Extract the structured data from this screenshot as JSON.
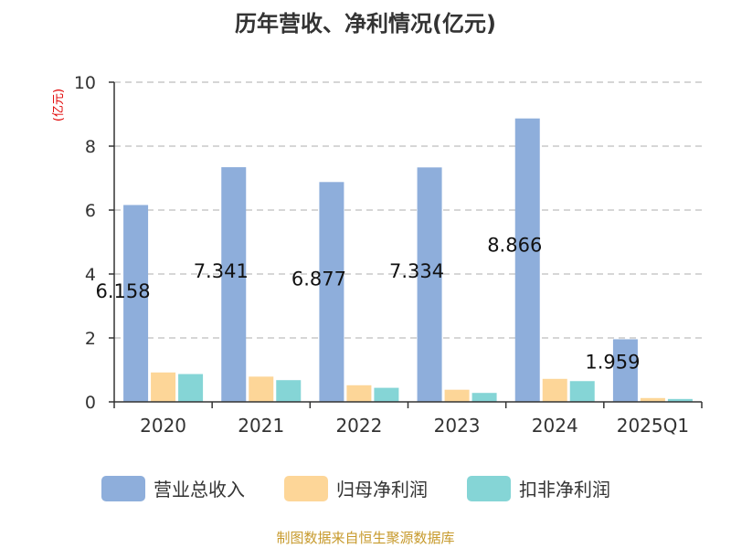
{
  "title": "历年营收、净利情况(亿元)",
  "unit_label": "(亿元)",
  "source": "制图数据来自恒生聚源数据库",
  "colors": {
    "营业总收入": "#8eaedb",
    "归母净利润": "#fdd698",
    "扣非净利润": "#85d5d6",
    "grid": "#c8c8c8",
    "axis": "#333333"
  },
  "chart_data": {
    "type": "bar",
    "title": "历年营收、净利情况(亿元)",
    "ylabel": "(亿元)",
    "ylim": [
      0,
      10
    ],
    "yticks": [
      "0",
      "2",
      "4",
      "6",
      "8",
      "10"
    ],
    "categories": [
      "2020",
      "2021",
      "2022",
      "2023",
      "2024",
      "2025Q1"
    ],
    "series": [
      {
        "name": "营业总收入",
        "values": [
          6.158,
          7.341,
          6.877,
          7.334,
          8.866,
          1.959
        ],
        "labels": [
          "6.158",
          "7.341",
          "6.877",
          "7.334",
          "8.866",
          "1.959"
        ]
      },
      {
        "name": "归母净利润",
        "values": [
          0.92,
          0.79,
          0.52,
          0.38,
          0.72,
          0.12
        ]
      },
      {
        "name": "扣非净利润",
        "values": [
          0.87,
          0.68,
          0.44,
          0.28,
          0.65,
          0.09
        ]
      }
    ],
    "grid": true,
    "legend": "bottom"
  }
}
